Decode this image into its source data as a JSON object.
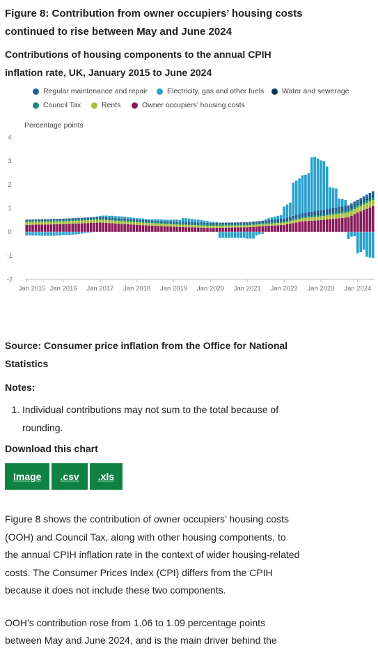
{
  "figure_title": "Figure 8: Contribution from owner occupiers’ housing costs continued to rise between May and June 2024",
  "chart_title": "Contributions of housing components to the annual CPIH inflation rate, UK, January 2015 to June 2024",
  "legend": [
    {
      "label": "Regular maintenance and repair",
      "color": "#206095"
    },
    {
      "label": "Electricity, gas and other fuels",
      "color": "#27a0cc"
    },
    {
      "label": "Water and sewerage",
      "color": "#003c57"
    },
    {
      "label": "Council Tax",
      "color": "#118c7b"
    },
    {
      "label": "Rents",
      "color": "#a8bd3a"
    },
    {
      "label": "Owner occupiers’ housing costs",
      "color": "#871a5b"
    }
  ],
  "source": "Source: Consumer price inflation from the Office for National Statistics",
  "notes_heading": "Notes:",
  "notes": [
    "Individual contributions may not sum to the total because of rounding."
  ],
  "download_heading": "Download this chart",
  "download_buttons": [
    "Image",
    ".csv",
    ".xls"
  ],
  "paragraphs": [
    "Figure 8 shows the contribution of owner occupiers’ housing costs (OOH) and Council Tax, along with other housing components, to the annual CPIH inflation rate in the context of wider housing-related costs. The Consumer Prices Index (CPI) differs from the CPIH because it does not include these two components.",
    "OOH’s contribution rose from 1.06 to 1.09 percentage points between May and June 2024, and is the main driver behind the"
  ],
  "chart_data": {
    "type": "bar",
    "stacked": true,
    "ylabel": "Percentage points",
    "ylim": [
      -2,
      4
    ],
    "yticks": [
      4,
      3,
      2,
      1,
      0,
      -1,
      -2
    ],
    "xtick_labels": [
      "Jan 2015",
      "Jan 2016",
      "Jan 2017",
      "Jan 2018",
      "Jan 2019",
      "Jan 2020",
      "Jan 2021",
      "Jan 2022",
      "Jan 2023",
      "Jan 2024"
    ],
    "x_start": "Jan 2015",
    "x_end": "Jun 2024",
    "n_months": 114,
    "series": [
      {
        "name": "Owner occupiers’ housing costs",
        "anchors": [
          [
            0,
            0.3
          ],
          [
            12,
            0.33
          ],
          [
            24,
            0.4
          ],
          [
            36,
            0.3
          ],
          [
            48,
            0.22
          ],
          [
            60,
            0.17
          ],
          [
            72,
            0.2
          ],
          [
            84,
            0.3
          ],
          [
            90,
            0.45
          ],
          [
            96,
            0.5
          ],
          [
            105,
            0.62
          ],
          [
            108,
            0.82
          ],
          [
            113,
            1.09
          ]
        ]
      },
      {
        "name": "Rents",
        "anchors": [
          [
            0,
            0.12
          ],
          [
            24,
            0.12
          ],
          [
            48,
            0.1
          ],
          [
            72,
            0.08
          ],
          [
            84,
            0.1
          ],
          [
            96,
            0.16
          ],
          [
            108,
            0.22
          ],
          [
            113,
            0.26
          ]
        ]
      },
      {
        "name": "Council Tax",
        "anchors": [
          [
            0,
            0.05
          ],
          [
            60,
            0.05
          ],
          [
            72,
            0.05
          ],
          [
            84,
            0.05
          ],
          [
            96,
            0.07
          ],
          [
            108,
            0.1
          ],
          [
            113,
            0.12
          ]
        ]
      },
      {
        "name": "Water and sewerage",
        "anchors": [
          [
            0,
            0.02
          ],
          [
            84,
            0.02
          ],
          [
            96,
            0.02
          ],
          [
            108,
            0.04
          ],
          [
            113,
            0.06
          ]
        ]
      },
      {
        "name": "Regular maintenance and repair",
        "anchors": [
          [
            0,
            0.03
          ],
          [
            24,
            0.05
          ],
          [
            48,
            0.05
          ],
          [
            72,
            0.06
          ],
          [
            84,
            0.1
          ],
          [
            96,
            0.17
          ],
          [
            108,
            0.18
          ],
          [
            113,
            0.19
          ]
        ]
      },
      {
        "name": "Electricity, gas and other fuels",
        "values_by_month": {
          "0": -0.15,
          "1": -0.15,
          "2": -0.15,
          "3": -0.15,
          "4": -0.15,
          "5": -0.16,
          "6": -0.16,
          "7": -0.16,
          "8": -0.16,
          "9": -0.16,
          "10": -0.15,
          "11": -0.15,
          "12": -0.13,
          "13": -0.12,
          "14": -0.12,
          "15": -0.11,
          "16": -0.1,
          "17": -0.09,
          "18": -0.07,
          "19": -0.05,
          "20": -0.03,
          "21": -0.02,
          "22": 0.0,
          "23": 0.02,
          "24": 0.04,
          "25": 0.06,
          "26": 0.07,
          "27": 0.07,
          "28": 0.08,
          "29": 0.08,
          "30": 0.08,
          "31": 0.08,
          "32": 0.08,
          "33": 0.07,
          "34": 0.07,
          "35": 0.06,
          "36": 0.05,
          "37": 0.05,
          "38": 0.05,
          "39": 0.04,
          "40": 0.04,
          "41": 0.04,
          "42": 0.05,
          "43": 0.06,
          "44": 0.06,
          "45": 0.06,
          "46": 0.06,
          "47": 0.07,
          "48": 0.08,
          "49": 0.09,
          "50": 0.08,
          "51": 0.16,
          "52": 0.16,
          "53": 0.15,
          "54": 0.14,
          "55": 0.12,
          "56": 0.12,
          "57": 0.1,
          "58": 0.08,
          "59": 0.07,
          "60": 0.05,
          "61": 0.04,
          "62": 0.03,
          "63": -0.25,
          "64": -0.25,
          "65": -0.25,
          "66": -0.25,
          "67": -0.25,
          "68": -0.25,
          "69": -0.25,
          "70": -0.25,
          "71": -0.25,
          "72": -0.28,
          "73": -0.28,
          "74": -0.28,
          "75": -0.15,
          "76": -0.1,
          "77": -0.08,
          "78": 0.05,
          "79": 0.08,
          "80": 0.1,
          "81": 0.12,
          "82": 0.14,
          "83": 0.15,
          "84": 0.5,
          "85": 0.55,
          "86": 0.6,
          "87": 1.4,
          "88": 1.45,
          "89": 1.5,
          "90": 1.6,
          "91": 1.6,
          "92": 1.65,
          "93": 2.3,
          "94": 2.3,
          "95": 2.2,
          "96": 2.1,
          "97": 2.05,
          "98": 1.8,
          "99": 0.9,
          "100": 0.85,
          "101": 0.8,
          "102": 0.35,
          "103": 0.3,
          "104": 0.25,
          "105": -0.3,
          "106": -0.2,
          "107": -0.18,
          "108": -0.9,
          "109": -0.85,
          "110": -0.75,
          "111": -1.05,
          "112": -1.08,
          "113": -1.1
        }
      }
    ],
    "colors": {
      "axis": "#bbbbbb",
      "tick_text": "#707070"
    }
  },
  "brand": {
    "button_green": "#0f8243"
  }
}
